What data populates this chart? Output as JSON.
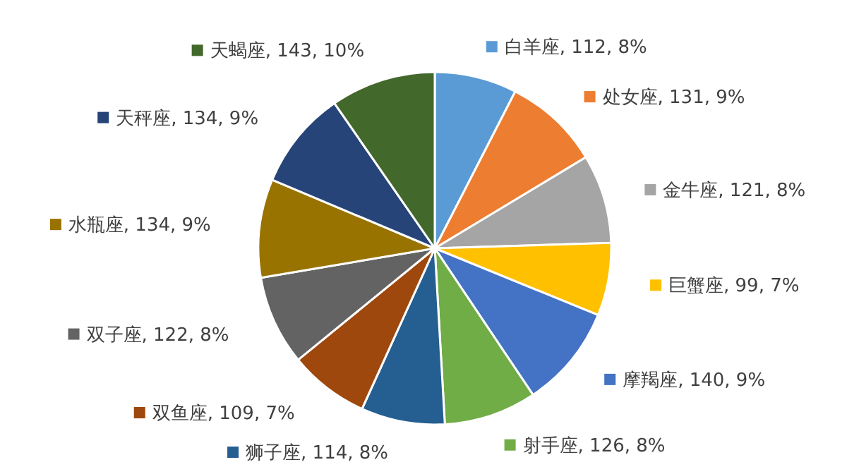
{
  "chart_data": {
    "type": "pie",
    "categories": [
      "白羊座",
      "处女座",
      "金牛座",
      "巨蟹座",
      "摩羯座",
      "射手座",
      "狮子座",
      "双鱼座",
      "双子座",
      "水瓶座",
      "天秤座",
      "天蝎座"
    ],
    "values": [
      112,
      131,
      121,
      99,
      140,
      126,
      114,
      109,
      122,
      134,
      134,
      143
    ],
    "colors": [
      "#5b9bd5",
      "#ed7d31",
      "#a5a5a5",
      "#ffc000",
      "#4472c4",
      "#70ad47",
      "#255e91",
      "#9e480e",
      "#636363",
      "#997300",
      "#264478",
      "#43682b"
    ],
    "value_labels": [
      "112, 8%",
      "131, 9%",
      "121, 8%",
      "99, 7%",
      "140, 9%",
      "126, 8%",
      "114, 8%",
      "109, 7%",
      "122, 8%",
      "134, 9%",
      "134, 9%",
      "143, 10%"
    ],
    "legend": "right"
  }
}
